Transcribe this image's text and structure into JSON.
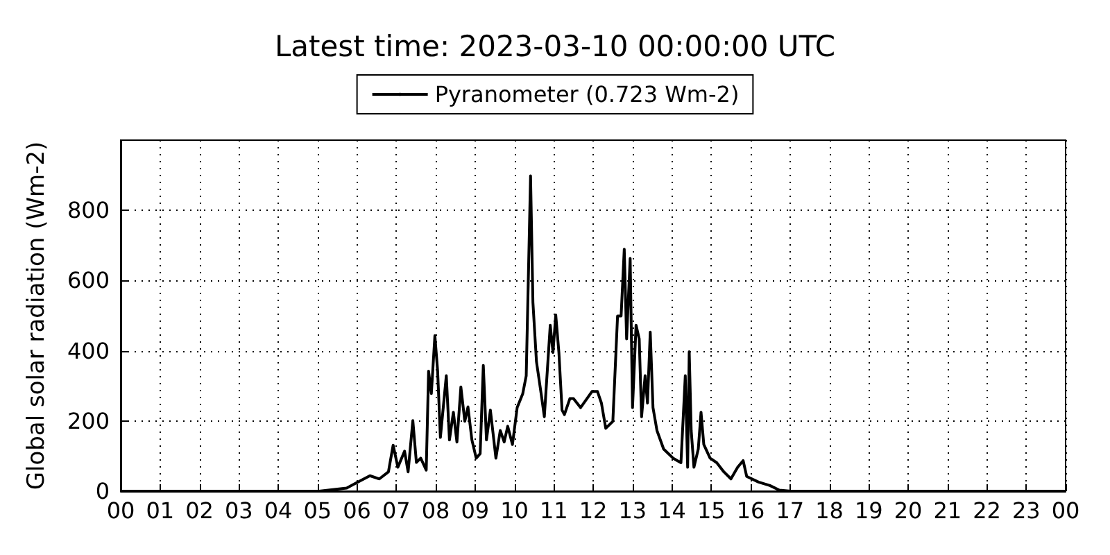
{
  "chart_data": {
    "type": "line",
    "title": "Latest time: 2023-03-10 00:00:00 UTC",
    "ylabel": "Global solar radiation (Wm-2)",
    "xlim": [
      0,
      24
    ],
    "xticks": [
      {
        "value": 0,
        "label": "00"
      },
      {
        "value": 1,
        "label": "01"
      },
      {
        "value": 2,
        "label": "02"
      },
      {
        "value": 3,
        "label": "03"
      },
      {
        "value": 4,
        "label": "04"
      },
      {
        "value": 5,
        "label": "05"
      },
      {
        "value": 6,
        "label": "06"
      },
      {
        "value": 7,
        "label": "07"
      },
      {
        "value": 8,
        "label": "08"
      },
      {
        "value": 9,
        "label": "09"
      },
      {
        "value": 10,
        "label": "10"
      },
      {
        "value": 11,
        "label": "11"
      },
      {
        "value": 12,
        "label": "12"
      },
      {
        "value": 13,
        "label": "13"
      },
      {
        "value": 14,
        "label": "14"
      },
      {
        "value": 15,
        "label": "15"
      },
      {
        "value": 16,
        "label": "16"
      },
      {
        "value": 17,
        "label": "17"
      },
      {
        "value": 18,
        "label": "18"
      },
      {
        "value": 19,
        "label": "19"
      },
      {
        "value": 20,
        "label": "20"
      },
      {
        "value": 21,
        "label": "21"
      },
      {
        "value": 22,
        "label": "22"
      },
      {
        "value": 23,
        "label": "23"
      },
      {
        "value": 24,
        "label": "00"
      }
    ],
    "ylim": [
      0,
      1000
    ],
    "yticks": [
      0,
      200,
      400,
      600,
      800
    ],
    "grid": true,
    "legend": "top",
    "marker": "none",
    "line_style": "solid",
    "series": [
      {
        "name": "Pyranometer (0.723 Wm-2)",
        "color": "#000000",
        "x": [
          0,
          5.04,
          5.74,
          6.33,
          6.57,
          6.8,
          6.92,
          7.04,
          7.21,
          7.3,
          7.42,
          7.51,
          7.62,
          7.76,
          7.82,
          7.89,
          7.98,
          8.05,
          8.12,
          8.27,
          8.35,
          8.45,
          8.54,
          8.64,
          8.74,
          8.82,
          8.92,
          9.03,
          9.13,
          9.21,
          9.29,
          9.39,
          9.53,
          9.64,
          9.74,
          9.83,
          9.95,
          10.07,
          10.21,
          10.3,
          10.41,
          10.47,
          10.56,
          10.68,
          10.76,
          10.91,
          10.98,
          11.05,
          11.13,
          11.21,
          11.27,
          11.41,
          11.5,
          11.68,
          11.97,
          12.11,
          12.21,
          12.32,
          12.5,
          12.62,
          12.71,
          12.79,
          12.85,
          12.94,
          13.0,
          13.09,
          13.17,
          13.23,
          13.32,
          13.38,
          13.45,
          13.52,
          13.62,
          13.79,
          14.03,
          14.23,
          14.34,
          14.4,
          14.44,
          14.49,
          14.56,
          14.67,
          14.74,
          14.81,
          14.97,
          15.14,
          15.32,
          15.5,
          15.67,
          15.81,
          15.9,
          16.2,
          16.49,
          16.73,
          17.02,
          24
        ],
        "values": [
          0,
          0,
          9,
          44,
          35,
          55,
          131,
          68,
          114,
          55,
          201,
          82,
          94,
          60,
          342,
          278,
          443,
          342,
          153,
          329,
          146,
          225,
          140,
          297,
          199,
          240,
          146,
          94,
          107,
          358,
          146,
          231,
          94,
          173,
          140,
          185,
          133,
          238,
          277,
          329,
          898,
          538,
          369,
          277,
          212,
          473,
          395,
          502,
          395,
          231,
          218,
          264,
          264,
          238,
          284,
          284,
          251,
          179,
          199,
          499,
          499,
          689,
          434,
          663,
          238,
          473,
          434,
          212,
          329,
          251,
          453,
          238,
          173,
          120,
          94,
          81,
          329,
          68,
          397,
          173,
          68,
          120,
          225,
          133,
          94,
          81,
          55,
          35,
          68,
          87,
          42,
          26,
          16,
          3,
          0,
          0
        ]
      }
    ]
  }
}
